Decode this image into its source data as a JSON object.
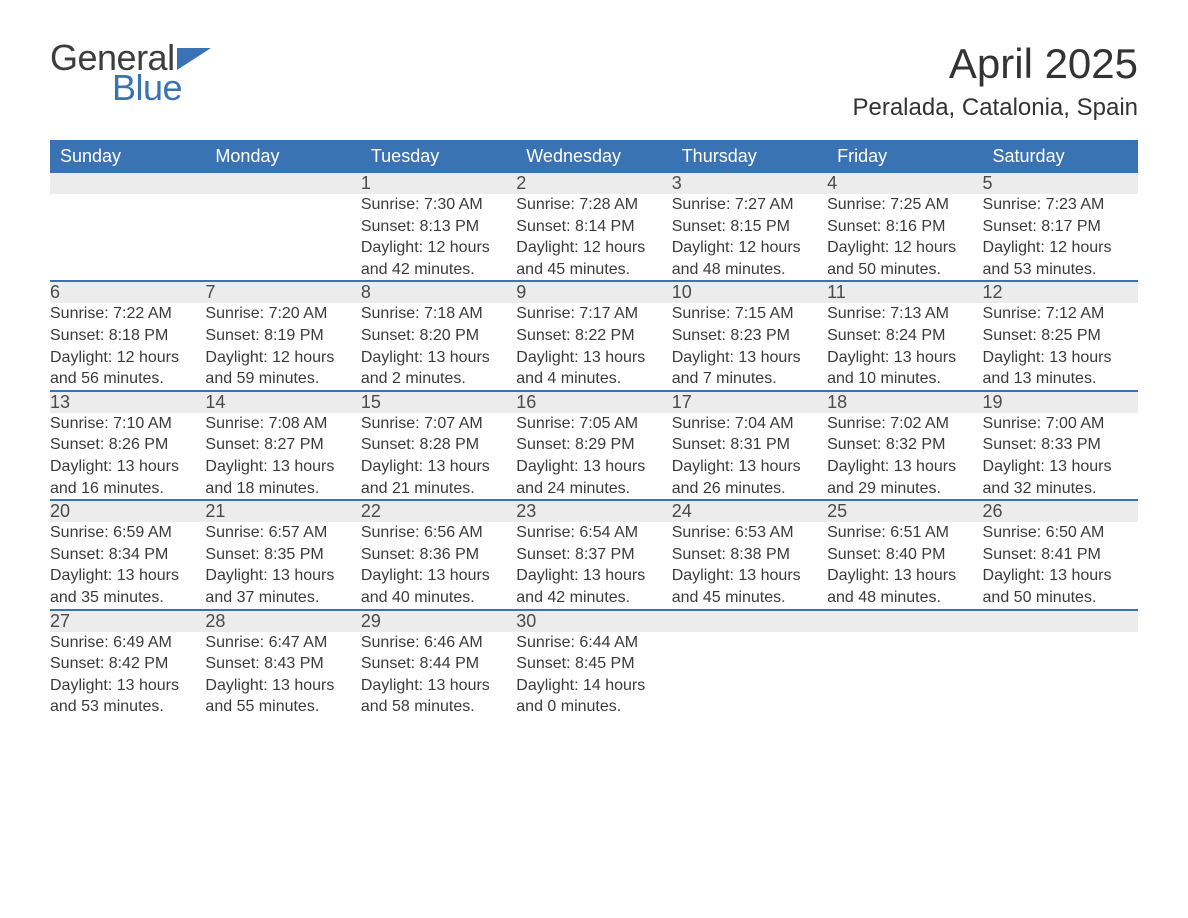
{
  "logo": {
    "text1": "General",
    "text2": "Blue",
    "flag_color": "#3a73b4"
  },
  "title": "April 2025",
  "location": "Peralada, Catalonia, Spain",
  "colors": {
    "header_bg": "#3a73b4",
    "header_text": "#ffffff",
    "daynum_bg": "#ececec",
    "body_text": "#3b3b3b",
    "divider": "#3a73b4"
  },
  "day_headers": [
    "Sunday",
    "Monday",
    "Tuesday",
    "Wednesday",
    "Thursday",
    "Friday",
    "Saturday"
  ],
  "weeks": [
    [
      null,
      null,
      {
        "n": "1",
        "sr": "7:30 AM",
        "ss": "8:13 PM",
        "dl": "12 hours and 42 minutes."
      },
      {
        "n": "2",
        "sr": "7:28 AM",
        "ss": "8:14 PM",
        "dl": "12 hours and 45 minutes."
      },
      {
        "n": "3",
        "sr": "7:27 AM",
        "ss": "8:15 PM",
        "dl": "12 hours and 48 minutes."
      },
      {
        "n": "4",
        "sr": "7:25 AM",
        "ss": "8:16 PM",
        "dl": "12 hours and 50 minutes."
      },
      {
        "n": "5",
        "sr": "7:23 AM",
        "ss": "8:17 PM",
        "dl": "12 hours and 53 minutes."
      }
    ],
    [
      {
        "n": "6",
        "sr": "7:22 AM",
        "ss": "8:18 PM",
        "dl": "12 hours and 56 minutes."
      },
      {
        "n": "7",
        "sr": "7:20 AM",
        "ss": "8:19 PM",
        "dl": "12 hours and 59 minutes."
      },
      {
        "n": "8",
        "sr": "7:18 AM",
        "ss": "8:20 PM",
        "dl": "13 hours and 2 minutes."
      },
      {
        "n": "9",
        "sr": "7:17 AM",
        "ss": "8:22 PM",
        "dl": "13 hours and 4 minutes."
      },
      {
        "n": "10",
        "sr": "7:15 AM",
        "ss": "8:23 PM",
        "dl": "13 hours and 7 minutes."
      },
      {
        "n": "11",
        "sr": "7:13 AM",
        "ss": "8:24 PM",
        "dl": "13 hours and 10 minutes."
      },
      {
        "n": "12",
        "sr": "7:12 AM",
        "ss": "8:25 PM",
        "dl": "13 hours and 13 minutes."
      }
    ],
    [
      {
        "n": "13",
        "sr": "7:10 AM",
        "ss": "8:26 PM",
        "dl": "13 hours and 16 minutes."
      },
      {
        "n": "14",
        "sr": "7:08 AM",
        "ss": "8:27 PM",
        "dl": "13 hours and 18 minutes."
      },
      {
        "n": "15",
        "sr": "7:07 AM",
        "ss": "8:28 PM",
        "dl": "13 hours and 21 minutes."
      },
      {
        "n": "16",
        "sr": "7:05 AM",
        "ss": "8:29 PM",
        "dl": "13 hours and 24 minutes."
      },
      {
        "n": "17",
        "sr": "7:04 AM",
        "ss": "8:31 PM",
        "dl": "13 hours and 26 minutes."
      },
      {
        "n": "18",
        "sr": "7:02 AM",
        "ss": "8:32 PM",
        "dl": "13 hours and 29 minutes."
      },
      {
        "n": "19",
        "sr": "7:00 AM",
        "ss": "8:33 PM",
        "dl": "13 hours and 32 minutes."
      }
    ],
    [
      {
        "n": "20",
        "sr": "6:59 AM",
        "ss": "8:34 PM",
        "dl": "13 hours and 35 minutes."
      },
      {
        "n": "21",
        "sr": "6:57 AM",
        "ss": "8:35 PM",
        "dl": "13 hours and 37 minutes."
      },
      {
        "n": "22",
        "sr": "6:56 AM",
        "ss": "8:36 PM",
        "dl": "13 hours and 40 minutes."
      },
      {
        "n": "23",
        "sr": "6:54 AM",
        "ss": "8:37 PM",
        "dl": "13 hours and 42 minutes."
      },
      {
        "n": "24",
        "sr": "6:53 AM",
        "ss": "8:38 PM",
        "dl": "13 hours and 45 minutes."
      },
      {
        "n": "25",
        "sr": "6:51 AM",
        "ss": "8:40 PM",
        "dl": "13 hours and 48 minutes."
      },
      {
        "n": "26",
        "sr": "6:50 AM",
        "ss": "8:41 PM",
        "dl": "13 hours and 50 minutes."
      }
    ],
    [
      {
        "n": "27",
        "sr": "6:49 AM",
        "ss": "8:42 PM",
        "dl": "13 hours and 53 minutes."
      },
      {
        "n": "28",
        "sr": "6:47 AM",
        "ss": "8:43 PM",
        "dl": "13 hours and 55 minutes."
      },
      {
        "n": "29",
        "sr": "6:46 AM",
        "ss": "8:44 PM",
        "dl": "13 hours and 58 minutes."
      },
      {
        "n": "30",
        "sr": "6:44 AM",
        "ss": "8:45 PM",
        "dl": "14 hours and 0 minutes."
      },
      null,
      null,
      null
    ]
  ],
  "labels": {
    "sunrise": "Sunrise: ",
    "sunset": "Sunset: ",
    "daylight": "Daylight: "
  }
}
